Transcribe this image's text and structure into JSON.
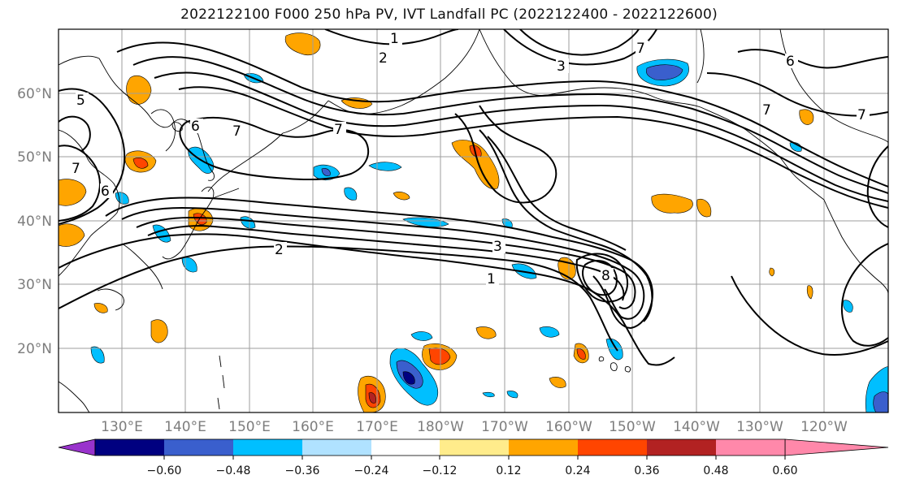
{
  "title": "2022122100 F000 250 hPa PV, IVT Landfall PC (2022122400 - 2022122600)",
  "lat_labels": [
    "60°N",
    "50°N",
    "40°N",
    "30°N",
    "20°N"
  ],
  "lon_labels": [
    "130°E",
    "140°E",
    "150°E",
    "160°E",
    "170°E",
    "180°W",
    "170°W",
    "160°W",
    "150°W",
    "140°W",
    "130°W",
    "120°W"
  ],
  "contour_labels": [
    "1",
    "2",
    "3",
    "5",
    "6",
    "7",
    "8"
  ],
  "colorbar": {
    "tick_labels": [
      "−0.60",
      "−0.48",
      "−0.36",
      "−0.24",
      "−0.12",
      "0.12",
      "0.24",
      "0.36",
      "0.48",
      "0.60"
    ],
    "colors": [
      "#9933cc",
      "#000080",
      "#3a5fcd",
      "#00bfff",
      "#b0e2ff",
      "#ffffff",
      "#ffec8b",
      "#ffa500",
      "#ff4500",
      "#b22222",
      "#ff88aa"
    ]
  },
  "colors": {
    "positive_low": "#ffa500",
    "positive_mid": "#ff4500",
    "positive_high": "#b22222",
    "negative_low": "#00bfff",
    "negative_mid": "#3a5fcd",
    "negative_high": "#000080",
    "light_pos": "#ffec8b",
    "light_neg": "#b0e2ff"
  }
}
